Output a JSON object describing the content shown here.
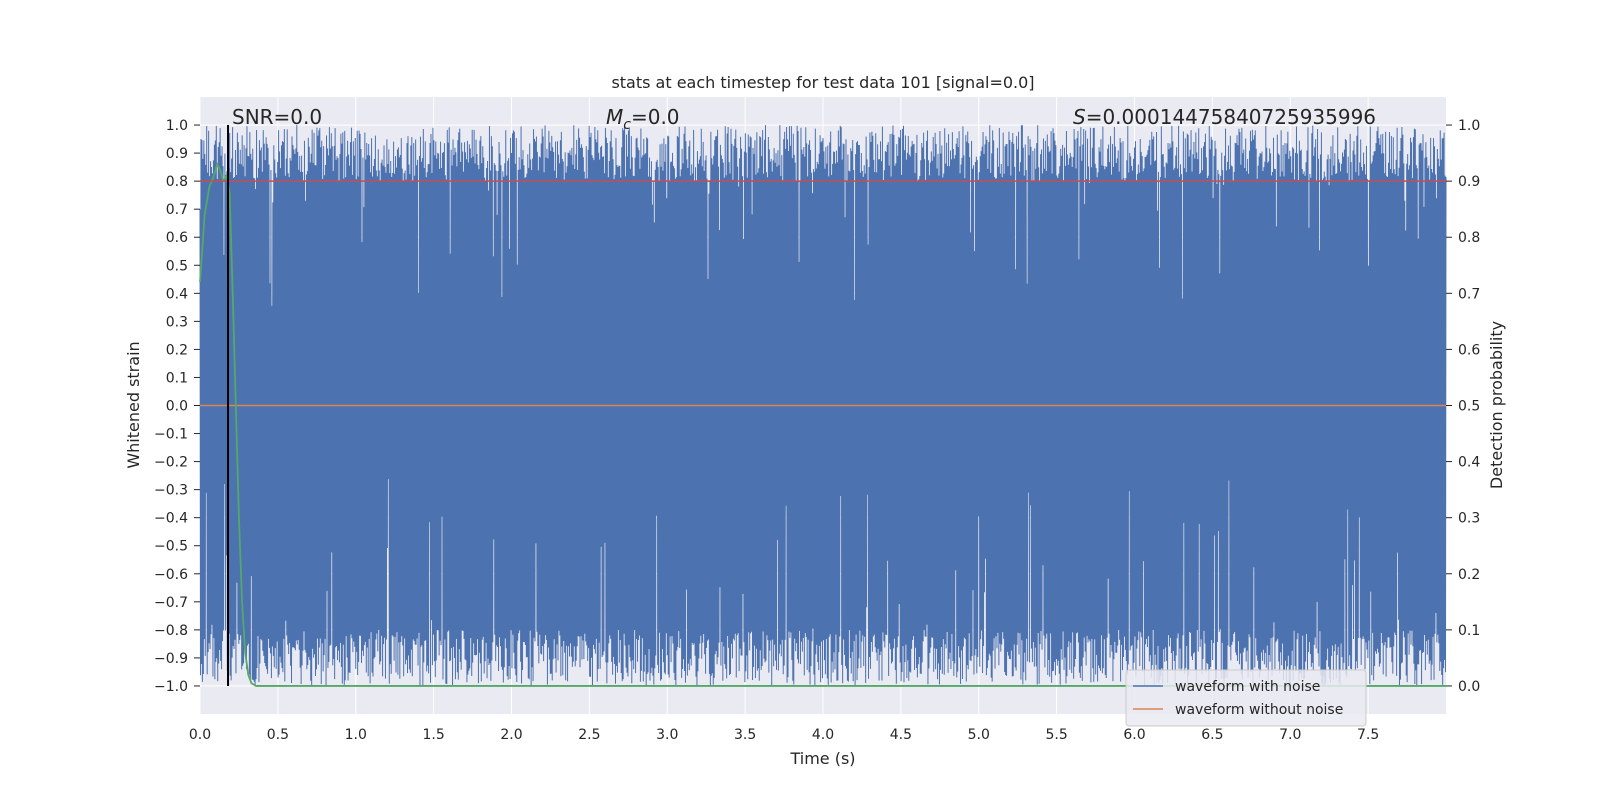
{
  "chart_data": {
    "type": "line",
    "title": "stats at each timestep for test data 101 [signal=0.0]",
    "xlabel": "Time (s)",
    "ylabel_left": "Whitened strain",
    "ylabel_right": "Detection probability",
    "xlim": [
      0.0,
      8.0
    ],
    "ylim_left": [
      -1.1,
      1.1
    ],
    "ylim_right": [
      -0.05,
      1.05
    ],
    "x_ticks": [
      "0.0",
      "0.5",
      "1.0",
      "1.5",
      "2.0",
      "2.5",
      "3.0",
      "3.5",
      "4.0",
      "4.5",
      "5.0",
      "5.5",
      "6.0",
      "6.5",
      "7.0",
      "7.5"
    ],
    "y_ticks_left": [
      "1.0",
      "0.9",
      "0.8",
      "0.7",
      "0.6",
      "0.5",
      "0.4",
      "0.3",
      "0.2",
      "0.1",
      "0.0",
      "−0.1",
      "−0.2",
      "−0.3",
      "−0.4",
      "−0.5",
      "−0.6",
      "−0.7",
      "−0.8",
      "−0.9",
      "−1.0"
    ],
    "y_ticks_right": [
      "1.0",
      "0.9",
      "0.8",
      "0.7",
      "0.6",
      "0.5",
      "0.4",
      "0.3",
      "0.2",
      "0.1",
      "0.0"
    ],
    "grid": true,
    "legend_position": "lower-right",
    "annotations": {
      "snr": "SNR=0.0",
      "mc_symbol": "M",
      "mc_sub": "c",
      "mc_value": "=0.0",
      "s_symbol": "S",
      "s_value": "=0.00014475840725935996"
    },
    "series": [
      {
        "name": "waveform with noise",
        "axis": "left",
        "color": "#4c72b0",
        "description": "dense whitened noise oscillating between about -1.0 and 1.0 across 0-8 s"
      },
      {
        "name": "waveform without noise",
        "axis": "left",
        "color": "#dd8452",
        "x": [
          0.0,
          8.0
        ],
        "y": [
          0.0,
          0.0
        ]
      },
      {
        "axis": "right",
        "color": "#55a868",
        "x": [
          0.0,
          0.03,
          0.06,
          0.09,
          0.11,
          0.13,
          0.15,
          0.17,
          0.19,
          0.21,
          0.23,
          0.25,
          0.27,
          0.29,
          0.31,
          0.33,
          0.36,
          0.4,
          8.0
        ],
        "y": [
          0.72,
          0.84,
          0.89,
          0.91,
          0.93,
          0.92,
          0.9,
          0.91,
          0.88,
          0.7,
          0.5,
          0.3,
          0.15,
          0.06,
          0.02,
          0.005,
          0.0,
          0.0,
          0.0
        ]
      },
      {
        "axis": "right",
        "color": "#c44e52",
        "x": [
          0.0,
          8.0
        ],
        "y": [
          0.9,
          0.9
        ]
      }
    ],
    "vertical_marker": {
      "x": 0.18,
      "color": "#000000"
    }
  }
}
